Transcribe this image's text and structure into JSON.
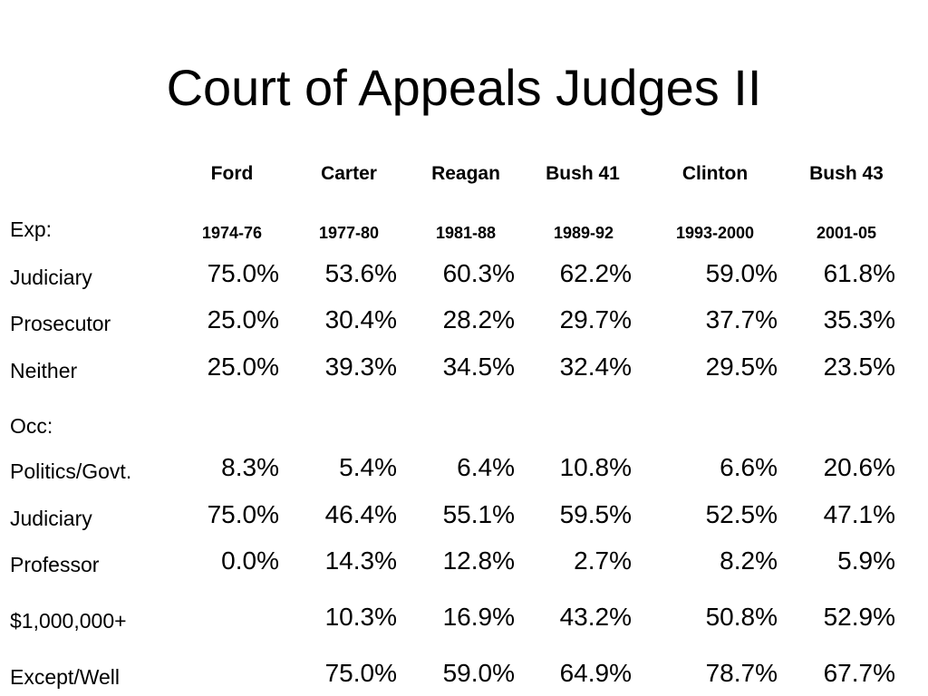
{
  "title": "Court of Appeals Judges II",
  "columns": [
    {
      "name": "Ford",
      "years": "1974-76"
    },
    {
      "name": "Carter",
      "years": "1977-80"
    },
    {
      "name": "Reagan",
      "years": "1981-88"
    },
    {
      "name": "Bush 41",
      "years": "1989-92"
    },
    {
      "name": "Clinton",
      "years": "1993-2000"
    },
    {
      "name": "Bush 43",
      "years": "2001-05"
    }
  ],
  "section_exp": "Exp:",
  "section_occ": "Occ:",
  "rows": [
    {
      "label": "Judiciary",
      "values": [
        "75.0%",
        "53.6%",
        "60.3%",
        "62.2%",
        "59.0%",
        "61.8%"
      ]
    },
    {
      "label": "Prosecutor",
      "values": [
        "25.0%",
        "30.4%",
        "28.2%",
        "29.7%",
        "37.7%",
        "35.3%"
      ]
    },
    {
      "label": "Neither",
      "values": [
        "25.0%",
        "39.3%",
        "34.5%",
        "32.4%",
        "29.5%",
        "23.5%"
      ]
    },
    {
      "label": "Politics/Govt.",
      "values": [
        "8.3%",
        "5.4%",
        "6.4%",
        "10.8%",
        "6.6%",
        "20.6%"
      ]
    },
    {
      "label": "Judiciary",
      "values": [
        "75.0%",
        "46.4%",
        "55.1%",
        "59.5%",
        "52.5%",
        "47.1%"
      ]
    },
    {
      "label": "Professor",
      "values": [
        "0.0%",
        "14.3%",
        "12.8%",
        "2.7%",
        "8.2%",
        "5.9%"
      ]
    },
    {
      "label": "$1,000,000+",
      "values": [
        "",
        "10.3%",
        "16.9%",
        "43.2%",
        "50.8%",
        "52.9%"
      ]
    },
    {
      "label": "Except/Well",
      "values": [
        "",
        "75.0%",
        "59.0%",
        "64.9%",
        "78.7%",
        "67.7%"
      ]
    }
  ]
}
